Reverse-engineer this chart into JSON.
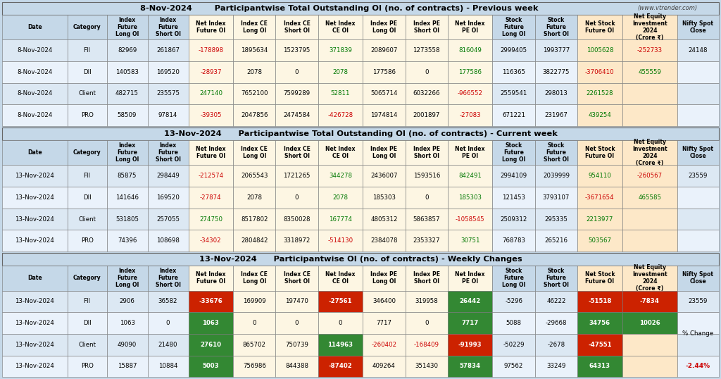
{
  "section1_title": "8-Nov-2024        Participantwise Total Outstanding OI (no. of contracts) - Previous week",
  "section1_title_suffix": "(www.vtrender.com)",
  "section2_title": "13-Nov-2024      Participantwise Total Outstanding OI (no. of contracts) - Current week",
  "section3_title": "13-Nov-2024      Participantwise OI (no. of contracts) - Weekly Changes",
  "col_headers": [
    "Date",
    "Category",
    "Index\nFuture\nLong OI",
    "Index\nFuture\nShort OI",
    "Net Index\nFuture OI",
    "Index CE\nLong OI",
    "Index CE\nShort OI",
    "Net Index\nCE OI",
    "Index PE\nLong OI",
    "Index PE\nShort OI",
    "Net Index\nPE OI",
    "Stock\nFuture\nLong OI",
    "Stock\nFuture\nShort OI",
    "Net Stock\nFuture OI",
    "Net Equity\nInvestment\n2024\n(Crore ₹)",
    "Nifty Spot\nClose"
  ],
  "section1_rows": [
    [
      "8-Nov-2024",
      "FII",
      "82969",
      "261867",
      "-178898",
      "1895634",
      "1523795",
      "371839",
      "2089607",
      "1273558",
      "816049",
      "2999405",
      "1993777",
      "1005628",
      "-252733",
      "24148"
    ],
    [
      "8-Nov-2024",
      "DII",
      "140583",
      "169520",
      "-28937",
      "2078",
      "0",
      "2078",
      "177586",
      "0",
      "177586",
      "116365",
      "3822775",
      "-3706410",
      "455559",
      ""
    ],
    [
      "8-Nov-2024",
      "Client",
      "482715",
      "235575",
      "247140",
      "7652100",
      "7599289",
      "52811",
      "5065714",
      "6032266",
      "-966552",
      "2559541",
      "298013",
      "2261528",
      "",
      ""
    ],
    [
      "8-Nov-2024",
      "PRO",
      "58509",
      "97814",
      "-39305",
      "2047856",
      "2474584",
      "-426728",
      "1974814",
      "2001897",
      "-27083",
      "671221",
      "231967",
      "439254",
      "",
      ""
    ]
  ],
  "section2_rows": [
    [
      "13-Nov-2024",
      "FII",
      "85875",
      "298449",
      "-212574",
      "2065543",
      "1721265",
      "344278",
      "2436007",
      "1593516",
      "842491",
      "2994109",
      "2039999",
      "954110",
      "-260567",
      "23559"
    ],
    [
      "13-Nov-2024",
      "DII",
      "141646",
      "169520",
      "-27874",
      "2078",
      "0",
      "2078",
      "185303",
      "0",
      "185303",
      "121453",
      "3793107",
      "-3671654",
      "465585",
      ""
    ],
    [
      "13-Nov-2024",
      "Client",
      "531805",
      "257055",
      "274750",
      "8517802",
      "8350028",
      "167774",
      "4805312",
      "5863857",
      "-1058545",
      "2509312",
      "295335",
      "2213977",
      "",
      ""
    ],
    [
      "13-Nov-2024",
      "PRO",
      "74396",
      "108698",
      "-34302",
      "2804842",
      "3318972",
      "-514130",
      "2384078",
      "2353327",
      "30751",
      "768783",
      "265216",
      "503567",
      "",
      ""
    ]
  ],
  "section3_rows": [
    [
      "13-Nov-2024",
      "FII",
      "2906",
      "36582",
      "-33676",
      "169909",
      "197470",
      "-27561",
      "346400",
      "319958",
      "26442",
      "-5296",
      "46222",
      "-51518",
      "-7834",
      "23559"
    ],
    [
      "13-Nov-2024",
      "DII",
      "1063",
      "0",
      "1063",
      "0",
      "0",
      "0",
      "7717",
      "0",
      "7717",
      "5088",
      "-29668",
      "34756",
      "10026",
      ""
    ],
    [
      "13-Nov-2024",
      "Client",
      "49090",
      "21480",
      "27610",
      "865702",
      "750739",
      "114963",
      "-260402",
      "-168409",
      "-91993",
      "-50229",
      "-2678",
      "-47551",
      "",
      ""
    ],
    [
      "13-Nov-2024",
      "PRO",
      "15887",
      "10884",
      "5003",
      "756986",
      "844388",
      "-87402",
      "409264",
      "351430",
      "57834",
      "97562",
      "33249",
      "64313",
      "",
      ""
    ]
  ],
  "pct_change": "-2.44%",
  "bg_section_header": "#c5d8e8",
  "bg_col_header": "#c5d8e8",
  "bg_data_light": "#dce8f3",
  "bg_data_dark": "#c8d8eb",
  "bg_yellow_light": "#fdf6e3",
  "bg_orange_light": "#fde8c8",
  "color_red_text": "#cc0000",
  "color_green_text": "#007700",
  "color_red_bg": "#cc2200",
  "color_green_bg": "#338833"
}
